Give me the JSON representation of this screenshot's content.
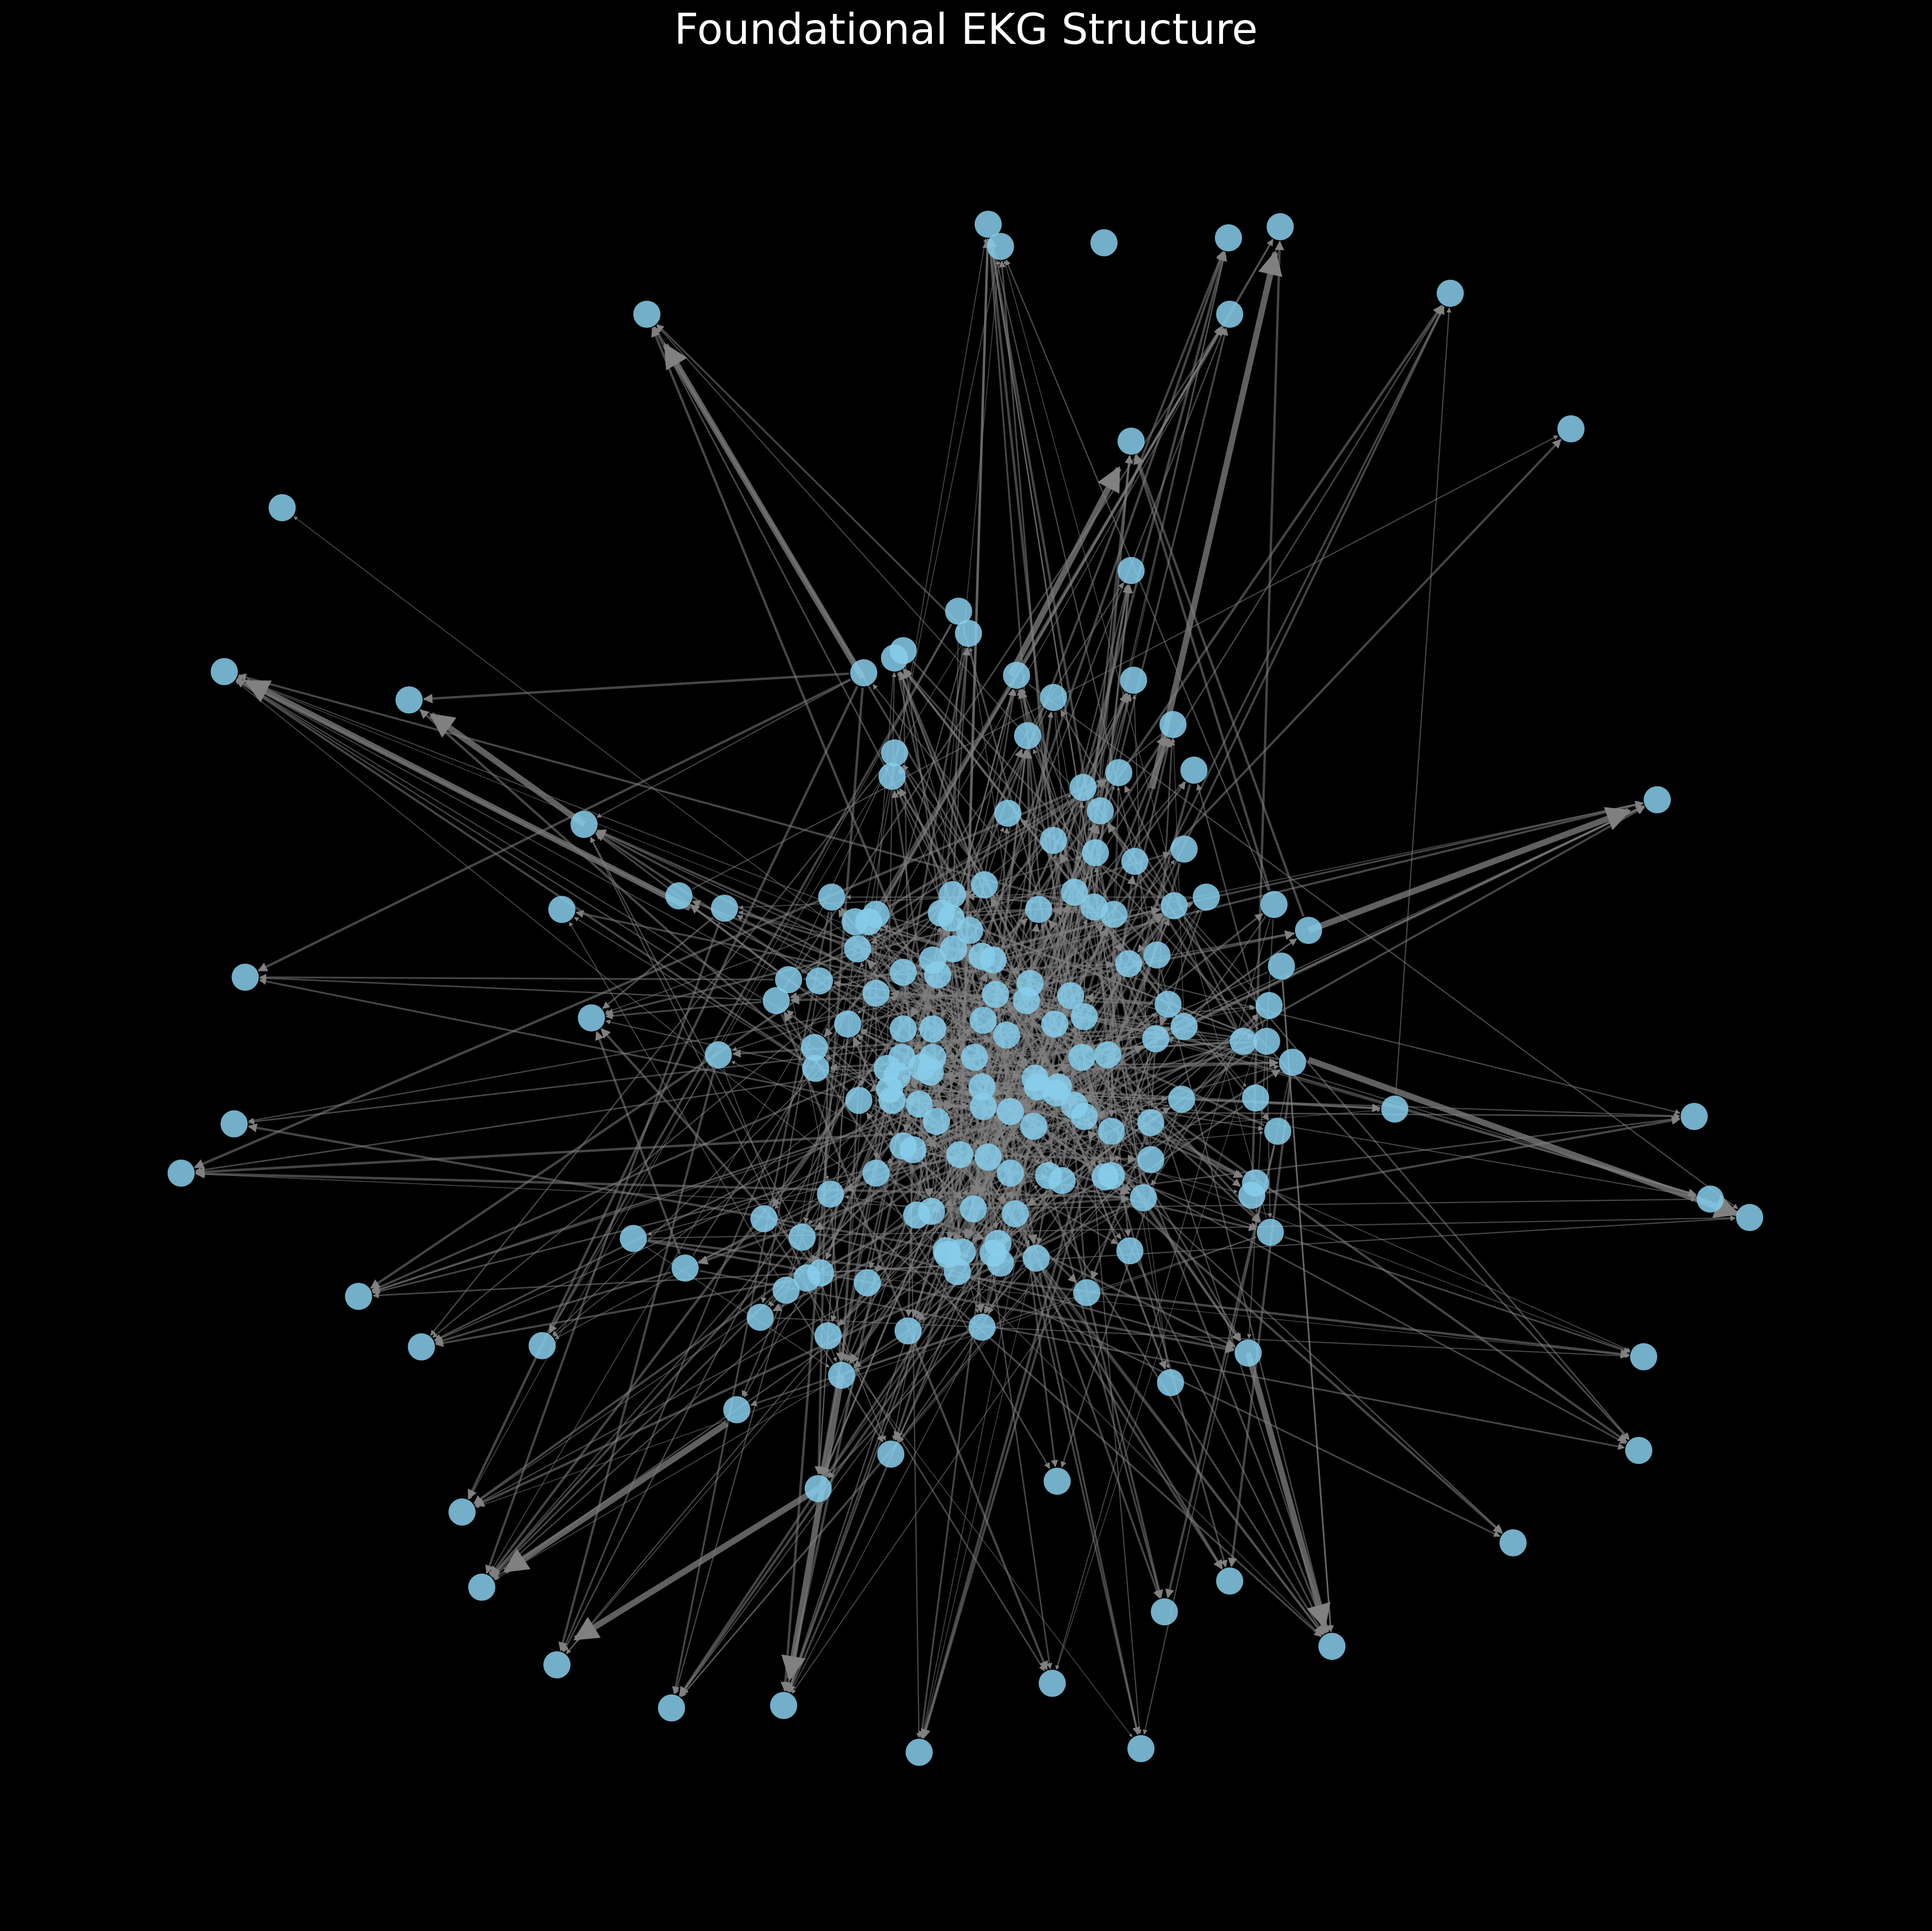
{
  "title": "Foundational EKG Structure",
  "colors": {
    "background": "#000000",
    "node": "#87CEEB",
    "edge": "#808080",
    "title": "#ffffff"
  }
}
